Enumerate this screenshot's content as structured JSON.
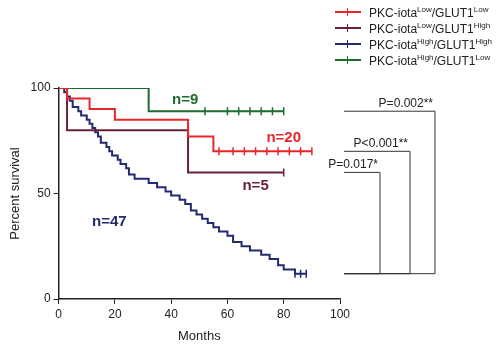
{
  "chart_data": {
    "type": "line",
    "x_label": "Months",
    "y_label": "Percent survival",
    "xlim": [
      0,
      100
    ],
    "xticks": [
      0,
      20,
      40,
      60,
      80,
      100
    ],
    "ylim": [
      0,
      100
    ],
    "yticks": [
      0,
      50,
      100
    ],
    "grid": false,
    "legend": "top-right",
    "line_style": "step",
    "series": [
      {
        "name": "PKC-iotaLow/GLUT1Low",
        "color": "#e8262a",
        "x": [
          0,
          3,
          11,
          20,
          46,
          55,
          90
        ],
        "values": [
          100,
          95,
          90,
          85,
          77,
          70,
          70
        ],
        "censored": {
          "x": [
            57,
            62,
            66,
            70,
            74,
            78,
            82,
            86,
            90
          ],
          "values": [
            70,
            70,
            70,
            70,
            70,
            70,
            70,
            70,
            70
          ]
        }
      },
      {
        "name": "PKC-iotaLow/GLUT1High",
        "color": "#6b1f33",
        "x": [
          0,
          3,
          46,
          80
        ],
        "values": [
          100,
          80,
          60,
          60
        ],
        "censored": {
          "x": [
            80
          ],
          "values": [
            60
          ]
        }
      },
      {
        "name": "PKC-iotaHigh/GLUT1High",
        "color": "#232a6e",
        "x": [
          0,
          2,
          3,
          4,
          5,
          7,
          8,
          10,
          11,
          12,
          13,
          14,
          15,
          17,
          18,
          19,
          21,
          22,
          24,
          25,
          27,
          32,
          35,
          38,
          40,
          43,
          45,
          47,
          49,
          51,
          53,
          55,
          57,
          60,
          62,
          65,
          68,
          72,
          75,
          78,
          80,
          84,
          88
        ],
        "values": [
          100,
          98,
          96,
          94,
          91,
          89,
          87,
          85,
          83,
          81,
          79,
          77,
          74,
          72,
          70,
          68,
          66,
          64,
          62,
          59,
          57,
          55,
          53,
          51,
          49,
          47,
          45,
          42,
          40,
          38,
          36,
          34,
          32,
          30,
          27,
          25,
          23,
          21,
          19,
          16,
          14,
          12,
          12
        ],
        "censored": {
          "x": [
            84,
            86,
            88
          ],
          "values": [
            12,
            12,
            12
          ]
        }
      },
      {
        "name": "PKC-iotaHigh/GLUT1Low",
        "color": "#1e6b2e",
        "x": [
          0,
          32,
          80
        ],
        "values": [
          100,
          89,
          89
        ],
        "censored": {
          "x": [
            52,
            60,
            64,
            68,
            72,
            76,
            80
          ],
          "values": [
            89,
            89,
            89,
            89,
            89,
            89,
            89
          ]
        }
      }
    ],
    "annotations": [
      {
        "text": "n=9",
        "series": "PKC-iotaHigh/GLUT1Low"
      },
      {
        "text": "n=20",
        "series": "PKC-iotaLow/GLUT1Low"
      },
      {
        "text": "n=5",
        "series": "PKC-iotaLow/GLUT1High"
      },
      {
        "text": "n=47",
        "series": "PKC-iotaHigh/GLUT1High"
      },
      {
        "text": "P=0.017*",
        "between": [
          "PKC-iotaLow/GLUT1High",
          "PKC-iotaHigh/GLUT1High"
        ]
      },
      {
        "text": "P<0.001**",
        "between": [
          "PKC-iotaLow/GLUT1Low",
          "PKC-iotaHigh/GLUT1High"
        ]
      },
      {
        "text": "P=0.002**",
        "between": [
          "PKC-iotaHigh/GLUT1Low",
          "PKC-iotaHigh/GLUT1High"
        ]
      }
    ]
  }
}
